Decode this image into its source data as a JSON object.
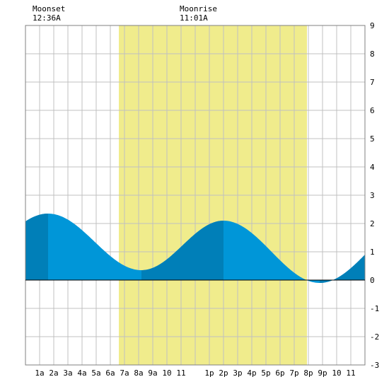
{
  "moon": {
    "moonset_label": "Moonset",
    "moonset_time": "12:36A",
    "moonrise_label": "Moonrise",
    "moonrise_time": "11:01A"
  },
  "colors": {
    "daylight": "#f0ec8c",
    "tide_light": "#0096d8",
    "tide_dark": "#007fb8",
    "grid": "#c0c0c0",
    "zero_line": "#000000"
  },
  "chart_data": {
    "type": "area",
    "title": "",
    "xlabel": "",
    "ylabel": "",
    "xlim": [
      0,
      24
    ],
    "ylim": [
      -3,
      9
    ],
    "grid": true,
    "x_tick_labels": [
      "1a",
      "2a",
      "3a",
      "4a",
      "5a",
      "6a",
      "7a",
      "8a",
      "9a",
      "10",
      "11",
      "1p",
      "2p",
      "3p",
      "4p",
      "5p",
      "6p",
      "7p",
      "8p",
      "9p",
      "10",
      "11"
    ],
    "x_tick_hours": [
      1,
      2,
      3,
      4,
      5,
      6,
      7,
      8,
      9,
      10,
      11,
      13,
      14,
      15,
      16,
      17,
      18,
      19,
      20,
      21,
      22,
      23
    ],
    "y_ticks": [
      -3,
      -2,
      -1,
      0,
      1,
      2,
      3,
      4,
      5,
      6,
      7,
      8,
      9
    ],
    "daylight_hours": [
      6.6,
      19.9
    ],
    "moonset_hour": 0.6,
    "moonrise_hour": 11.0,
    "tide_extremes": [
      {
        "hour": 1.6,
        "height": 2.35
      },
      {
        "hour": 8.2,
        "height": 0.35
      },
      {
        "hour": 14.0,
        "height": 2.1
      },
      {
        "hour": 20.8,
        "height": -0.1
      }
    ],
    "tide_start": {
      "hour": 0,
      "height": 1.85
    },
    "tide_end": {
      "hour": 24,
      "height": 1.2
    },
    "dark_shading_intervals": [
      [
        0,
        1.6
      ],
      [
        8.2,
        14.0
      ],
      [
        20.8,
        24
      ]
    ]
  }
}
